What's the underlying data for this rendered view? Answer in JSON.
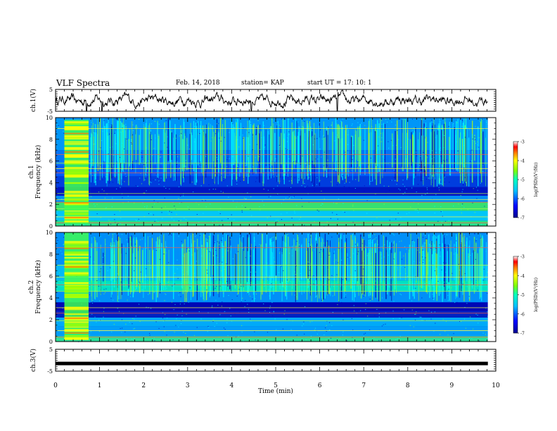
{
  "header": {
    "title": "VLF Spectra",
    "date": "Feb. 14, 2018",
    "station": "station= KAP",
    "start": "start  UT =   17: 10: 1"
  },
  "colors": {
    "low": "#00008f",
    "mid_low": "#0080ff",
    "mid": "#00ffff",
    "mid_high": "#80ff00",
    "high": "#ffff00",
    "peak": "#ff0000",
    "max": "#ffffff"
  },
  "chart_data": [
    {
      "type": "line",
      "ylabel": "ch.1(V)",
      "ylim": [
        -5,
        5
      ],
      "yticks": [
        "5",
        "-5"
      ],
      "xlim": [
        0,
        10
      ],
      "description_values": "waveform around 0 V, amplitude about ±2 V, occasional spikes to -5 V",
      "spikes_x": [
        0.7,
        1.05,
        4.45,
        6.4
      ]
    },
    {
      "type": "heatmap",
      "ylabel_line1": "ch.1",
      "ylabel_line2": "Frequency (kHz)",
      "ylim": [
        0,
        10
      ],
      "yticks": [
        "0",
        "2",
        "4",
        "6",
        "8",
        "10"
      ],
      "xlim": [
        0,
        10
      ],
      "colorbar": {
        "label": "log(PSD)(V²/Hz)",
        "range": [
          -7,
          -3
        ],
        "ticks": [
          "-3",
          "-4",
          "-5",
          "-6",
          "-7"
        ]
      },
      "burst_x": [
        0.2,
        0.75
      ],
      "lines_khz": [
        0.3,
        0.85,
        1.6,
        2.2,
        2.45,
        3.0,
        4.9,
        5.3,
        5.8,
        6.6,
        9.0
      ]
    },
    {
      "type": "heatmap",
      "ylabel_line1": "ch.2",
      "ylabel_line2": "Frequency (kHz)",
      "ylim": [
        0,
        10
      ],
      "yticks": [
        "0",
        "2",
        "4",
        "6",
        "8",
        "10"
      ],
      "xlim": [
        0,
        10
      ],
      "colorbar": {
        "label": "log(PSD)(V²/Hz)",
        "range": [
          -7,
          -3
        ],
        "ticks": [
          "-3",
          "-4",
          "-5",
          "-6",
          "-7"
        ]
      },
      "burst_x": [
        0.2,
        0.75
      ],
      "lines_khz": [
        0.4,
        1.0,
        1.9,
        2.6,
        3.1,
        4.6,
        5.2,
        5.9,
        7.0,
        8.6
      ]
    },
    {
      "type": "line",
      "ylabel": "ch.3(V)",
      "ylim": [
        -5,
        5
      ],
      "yticks": [
        "5",
        "-5"
      ],
      "xlim": [
        0,
        10
      ],
      "constant_value": -1.5,
      "xlabel": "Time  (min)",
      "xticks": [
        "0",
        "1",
        "2",
        "3",
        "4",
        "5",
        "6",
        "7",
        "8",
        "9",
        "10"
      ]
    }
  ]
}
